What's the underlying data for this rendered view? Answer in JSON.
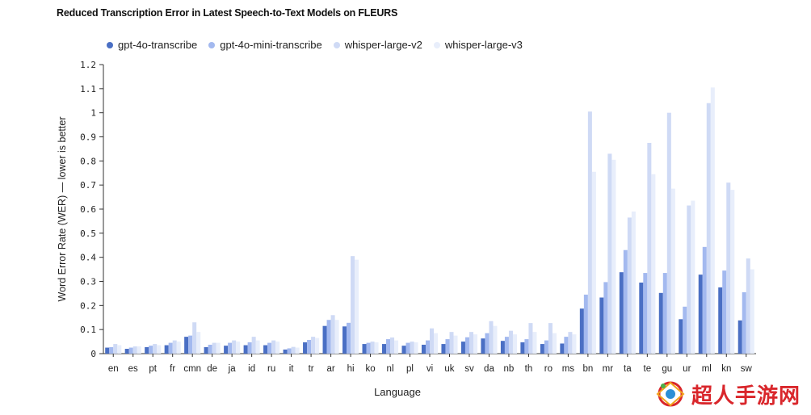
{
  "chart_data": {
    "type": "bar",
    "title": "Reduced Transcription Error in Latest Speech-to-Text Models on FLEURS",
    "xlabel": "Language",
    "ylabel": "Word Error Rate (WER) — lower is better",
    "ylim": [
      0,
      1.2
    ],
    "yticks": [
      0,
      0.1,
      0.2,
      0.3,
      0.4,
      0.5,
      0.6,
      0.7,
      0.8,
      0.9,
      1,
      1.1,
      1.2
    ],
    "ytick_labels": [
      "0",
      "0.1",
      "0.2",
      "0.3",
      "0.4",
      "0.5",
      "0.6",
      "0.7",
      "0.8",
      "0.9",
      "1",
      "1.1",
      "1.2"
    ],
    "legend_position": "top-left",
    "grid": false,
    "categories": [
      "en",
      "es",
      "pt",
      "fr",
      "cmn",
      "de",
      "ja",
      "id",
      "ru",
      "it",
      "tr",
      "ar",
      "hi",
      "ko",
      "nl",
      "pl",
      "vi",
      "uk",
      "sv",
      "da",
      "nb",
      "th",
      "ro",
      "ms",
      "bn",
      "mr",
      "ta",
      "te",
      "gu",
      "ur",
      "ml",
      "kn",
      "sw"
    ],
    "series": [
      {
        "name": "gpt-4o-transcribe",
        "color": "#4a6fc4",
        "values": [
          0.025,
          0.02,
          0.027,
          0.035,
          0.07,
          0.027,
          0.033,
          0.035,
          0.035,
          0.017,
          0.047,
          0.115,
          0.113,
          0.04,
          0.04,
          0.033,
          0.037,
          0.04,
          0.05,
          0.063,
          0.053,
          0.047,
          0.04,
          0.042,
          0.187,
          0.233,
          0.338,
          0.295,
          0.252,
          0.143,
          0.328,
          0.275,
          0.138
        ]
      },
      {
        "name": "gpt-4o-mini-transcribe",
        "color": "#a3b9ef",
        "values": [
          0.027,
          0.025,
          0.033,
          0.045,
          0.075,
          0.037,
          0.045,
          0.047,
          0.045,
          0.022,
          0.057,
          0.14,
          0.128,
          0.045,
          0.06,
          0.045,
          0.055,
          0.06,
          0.068,
          0.085,
          0.07,
          0.06,
          0.055,
          0.07,
          0.245,
          0.297,
          0.43,
          0.335,
          0.335,
          0.195,
          0.443,
          0.345,
          0.255
        ]
      },
      {
        "name": "whisper-large-v2",
        "color": "#cfdaf5",
        "values": [
          0.04,
          0.03,
          0.04,
          0.055,
          0.13,
          0.045,
          0.055,
          0.07,
          0.055,
          0.028,
          0.07,
          0.16,
          0.405,
          0.05,
          0.067,
          0.05,
          0.105,
          0.09,
          0.09,
          0.135,
          0.095,
          0.127,
          0.127,
          0.09,
          1.005,
          0.83,
          0.565,
          0.875,
          1.0,
          0.615,
          1.04,
          0.71,
          0.395
        ]
      },
      {
        "name": "whisper-large-v3",
        "color": "#e8eefb",
        "values": [
          0.035,
          0.03,
          0.035,
          0.05,
          0.09,
          0.045,
          0.05,
          0.055,
          0.05,
          0.025,
          0.065,
          0.14,
          0.39,
          0.047,
          0.055,
          0.047,
          0.085,
          0.075,
          0.08,
          0.115,
          0.08,
          0.09,
          0.085,
          0.08,
          0.755,
          0.805,
          0.59,
          0.745,
          0.685,
          0.635,
          1.105,
          0.68,
          0.35
        ]
      }
    ]
  },
  "watermark": {
    "text": "超人手游网"
  }
}
